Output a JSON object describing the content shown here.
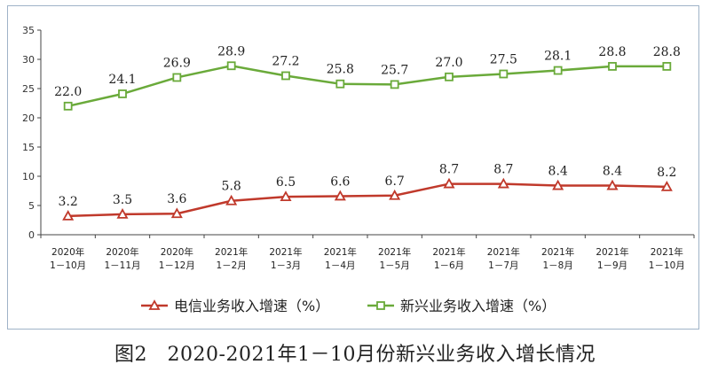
{
  "chart_data": {
    "type": "line",
    "title": "图2　2020-2021年1－10月份新兴业务收入增长情况",
    "ylim": [
      0,
      35
    ],
    "yticks": [
      0,
      5,
      10,
      15,
      20,
      25,
      30,
      35
    ],
    "grid": false,
    "legend_position": "bottom",
    "categories": [
      [
        "2020年",
        "1－10月"
      ],
      [
        "2020年",
        "1－11月"
      ],
      [
        "2020年",
        "1－12月"
      ],
      [
        "2021年",
        "1－2月"
      ],
      [
        "2021年",
        "1－3月"
      ],
      [
        "2021年",
        "1－4月"
      ],
      [
        "2021年",
        "1－5月"
      ],
      [
        "2021年",
        "1－6月"
      ],
      [
        "2021年",
        "1－7月"
      ],
      [
        "2021年",
        "1－8月"
      ],
      [
        "2021年",
        "1－9月"
      ],
      [
        "2021年",
        "1－10月"
      ]
    ],
    "series": [
      {
        "name": "电信业务收入增速（%）",
        "color": "#c0392b",
        "marker": "triangle",
        "values": [
          3.2,
          3.5,
          3.6,
          5.8,
          6.5,
          6.6,
          6.7,
          8.7,
          8.7,
          8.4,
          8.4,
          8.2
        ],
        "labels": [
          "3.2",
          "3.5",
          "3.6",
          "5.8",
          "6.5",
          "6.6",
          "6.7",
          "8.7",
          "8.7",
          "8.4",
          "8.4",
          "8.2"
        ]
      },
      {
        "name": "新兴业务收入增速（%）",
        "color": "#6aaa3a",
        "marker": "square",
        "values": [
          22.0,
          24.1,
          26.9,
          28.9,
          27.2,
          25.8,
          25.7,
          27.0,
          27.5,
          28.1,
          28.8,
          28.8
        ],
        "labels": [
          "22.0",
          "24.1",
          "26.9",
          "28.9",
          "27.2",
          "25.8",
          "25.7",
          "27.0",
          "27.5",
          "28.1",
          "28.8",
          "28.8"
        ]
      }
    ]
  }
}
